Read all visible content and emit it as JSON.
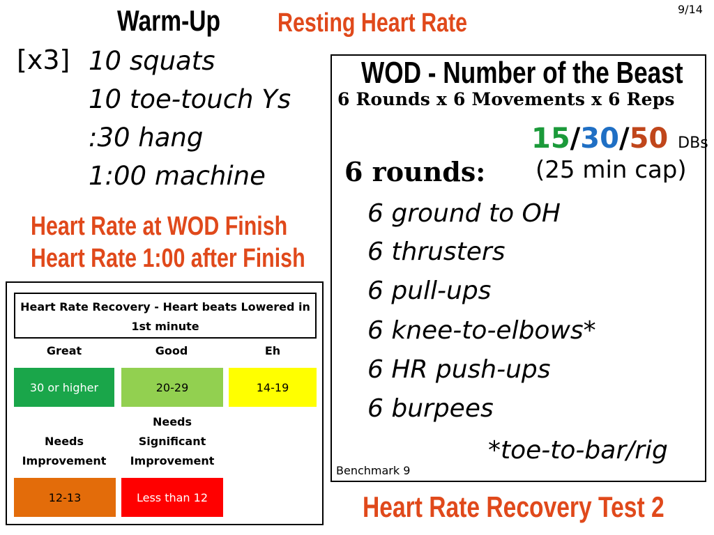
{
  "page_number": "9/14",
  "warmup": {
    "title": "Warm-Up",
    "multiplier": "[x3]",
    "items": [
      "10 squats",
      "10 toe-touch Ys",
      ":30 hang",
      "1:00 machine"
    ]
  },
  "notes": {
    "resting_hr": "Resting Heart Rate",
    "hr_wod_finish": "Heart Rate at WOD Finish",
    "hr_after_finish": "Heart Rate 1:00 after Finish",
    "test_title": "Heart Rate Recovery Test 2"
  },
  "wod": {
    "title": "WOD - Number of the Beast",
    "subtitle": "6 Rounds  x  6 Movements  x  6 Reps",
    "weights": [
      {
        "text": "15",
        "color": "#1b9a3a"
      },
      {
        "text": "30",
        "color": "#1f6fc4"
      },
      {
        "text": "50",
        "color": "#c0461b"
      }
    ],
    "weight_sep": "/",
    "weight_unit": "DBs",
    "rounds_label": "6 rounds:",
    "time_cap": "(25 min cap)",
    "movements": [
      "6 ground to OH",
      "6 thrusters",
      "6 pull-ups",
      "6 knee-to-elbows*",
      "6 HR push-ups",
      "6 burpees"
    ],
    "footnote": "*toe-to-bar/rig",
    "benchmark": "Benchmark 9"
  },
  "hrr": {
    "title": "Heart Rate Recovery - Heart beats Lowered in 1st minute",
    "categories": [
      {
        "label": "Great",
        "range": "30 or higher",
        "color": "#1aa64a",
        "text_color": "#ffffff"
      },
      {
        "label": "Good",
        "range": "20-29",
        "color": "#92d050",
        "text_color": "#000000"
      },
      {
        "label": "Eh",
        "range": "14-19",
        "color": "#ffff00",
        "text_color": "#000000"
      },
      {
        "label": "Needs Improvement",
        "range": "12-13",
        "color": "#e36c0a",
        "text_color": "#000000"
      },
      {
        "label": "Needs Significant Improvement",
        "range": "Less than 12",
        "color": "#ff0000",
        "text_color": "#ffffff"
      }
    ]
  }
}
